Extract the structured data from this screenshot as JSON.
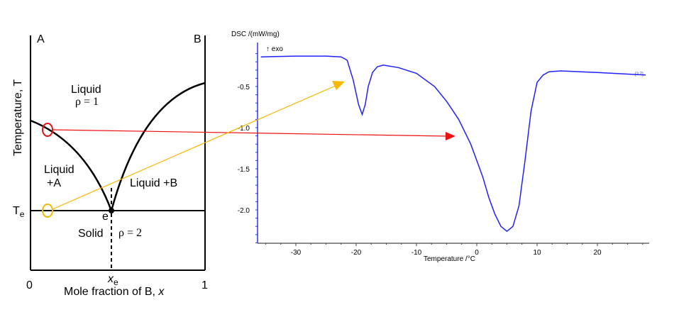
{
  "phase_diagram": {
    "label_a": "A",
    "label_b": "B",
    "y_axis": "Temperature, T",
    "x_axis": "Mole fraction of B, ",
    "x_axis_var": "x",
    "x0": "0",
    "x1": "1",
    "te": "T",
    "te_sub": "e",
    "xe": "x",
    "xe_sub": "e",
    "e": "e",
    "liquid": "Liquid",
    "rho1": "ρ = 1",
    "liquid_a1": "Liquid",
    "liquid_a2": "+A",
    "liquid_b": "Liquid +B",
    "solid": "Solid",
    "rho2": "ρ = 2"
  },
  "colors": {
    "curve": "#2020ff",
    "red": "#ee1111",
    "yellow": "#f5b800"
  },
  "chart_data": {
    "type": "line",
    "ylabel": "DSC /(mW/mg)",
    "xlabel": "Temperature /°C",
    "annotation": "↑ exo",
    "tag": "[2.7]",
    "xlim": [
      -36.5,
      28.5
    ],
    "ylim": [
      -2.4,
      -0.03
    ],
    "xticks": [
      -30,
      -20,
      -10,
      0,
      10,
      20
    ],
    "yticks": [
      -0.5,
      -1.0,
      -1.5,
      -2.0
    ],
    "ytick_labels": [
      "-0.5",
      "-1.0",
      "-1.5",
      "-2.0"
    ],
    "x": [
      -35.8,
      -30,
      -25,
      -22.5,
      -21.5,
      -20.5,
      -19.6,
      -19,
      -18.5,
      -18,
      -17.3,
      -16.5,
      -15.5,
      -13,
      -10,
      -7,
      -5,
      -3,
      -1,
      0,
      1,
      2,
      3,
      4,
      5,
      6,
      7,
      8,
      9,
      10,
      11,
      12,
      14,
      20,
      28
    ],
    "y": [
      -0.14,
      -0.13,
      -0.13,
      -0.14,
      -0.18,
      -0.42,
      -0.72,
      -0.84,
      -0.72,
      -0.5,
      -0.33,
      -0.26,
      -0.24,
      -0.27,
      -0.34,
      -0.5,
      -0.68,
      -0.9,
      -1.2,
      -1.4,
      -1.6,
      -1.85,
      -2.05,
      -2.2,
      -2.26,
      -2.2,
      -1.95,
      -1.4,
      -0.8,
      -0.45,
      -0.36,
      -0.32,
      -0.31,
      -0.33,
      -0.36
    ]
  }
}
